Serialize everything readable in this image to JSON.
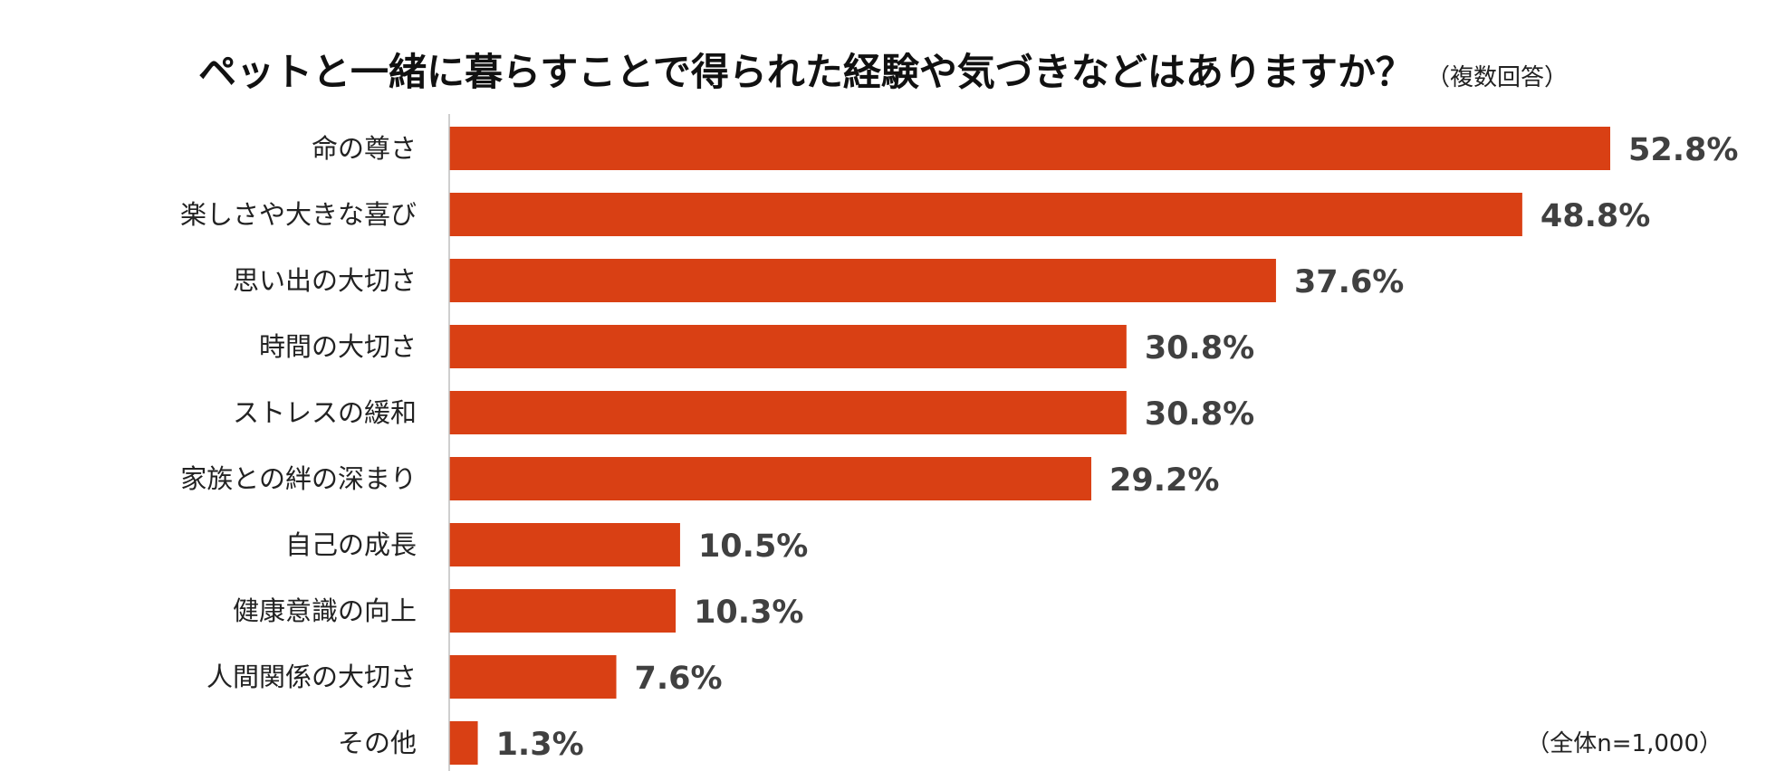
{
  "chart_data": {
    "type": "bar",
    "orientation": "horizontal",
    "title": "ペットと一緒に暮らすことで得られた経験や気づきなどはありますか？",
    "subtitle": "（複数回答）",
    "note": "（全体n=1,000）",
    "categories": [
      "命の尊さ",
      "楽しさや大きな喜び",
      "思い出の大切さ",
      "時間の大切さ",
      "ストレスの緩和",
      "家族との絆の深まり",
      "自己の成長",
      "健康意識の向上",
      "人間関係の大切さ",
      "その他"
    ],
    "values": [
      52.8,
      48.8,
      37.6,
      30.8,
      30.8,
      29.2,
      10.5,
      10.3,
      7.6,
      1.3
    ],
    "value_labels": [
      "52.8%",
      "48.8%",
      "37.6%",
      "30.8%",
      "30.8%",
      "29.2%",
      "10.5%",
      "10.3%",
      "7.6%",
      "1.3%"
    ],
    "xlim": [
      0,
      52.8
    ],
    "grid": false,
    "legend": "none",
    "bar_color": "#d94014",
    "axis_color": "#bfbfbf"
  }
}
